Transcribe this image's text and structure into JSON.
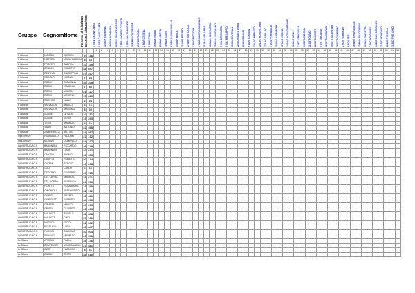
{
  "headers": {
    "group": "Gruppo",
    "surname": "Cognome",
    "name": "Nome"
  },
  "rotated_headers": {
    "presenze": "Presenze al 31/12/2025",
    "points": "Km. totali al 31/12/2025"
  },
  "events": [
    "1 GEN GRAN FONDO",
    "6 GEN CASSE CAFFE",
    "12 GEN RAVENNA",
    "19 GEN ROMAGNA",
    "26 GEN MONTEVECCHIO",
    "2 FEB SOCIETA' CICLISTA",
    "9 FEB SAN CLEMENTE",
    "16 FEB MONTEFIORE",
    "23 FEB FAENZA",
    "2 MAR CESENA",
    "9 MAR FORLI",
    "16 MAR RIMINI",
    "23 MAR CERVIA",
    "30 MAR LUGO",
    "6 APR BAGNACAVALLO",
    "13 APR IMOLA",
    "21 APR PESARO",
    "27 APR CATTOLICA",
    "1 MAG RICCIONE",
    "4 MAG SANTARCANGELO",
    "11 MAG BELLARIA",
    "18 MAG CESENATICO",
    "25 MAG SAVIGNANO",
    "1 GIU BERTINORO",
    "8 GIU PREDAPPIO",
    "15 GIU CIVITELLA",
    "22 GIU SANTA SOFIA",
    "29 GIU BAGNO",
    "6 LUG SARSINA",
    "13 LUG MERCATO",
    "20 LUG NOVAFELTRIA",
    "27 LUG SAN LEO",
    "3 AGO PENNABILLI",
    "10 AGO CARPEGNA",
    "17 AGO URBINO",
    "24 AGO FOSSOMBRONE",
    "31 AGO FANO",
    "7 SET SENIGALLIA",
    "14 SET ANCONA",
    "21 SET OSIMO",
    "28 SET LORETO",
    "5 OTT RECANATI",
    "12 OTT MACERATA",
    "19 OTT TOLENTINO",
    "26 OTT CAMERINO",
    "2 NOV FABRIANO",
    "9 NOV JESI",
    "16 NOV CHIARAVALLE",
    "23 NOV FALCONARA",
    "30 NOV MAROTTA",
    "7 DIC MONDOLFO",
    "14 DIC SAN COSTANZO",
    "21 DIC MONDAVIO",
    "28 DIC PERGOLA",
    "31 DIC FINE ANNO"
  ],
  "col_numbers": [
    "1",
    "2",
    "3",
    "4",
    "5",
    "6",
    "7",
    "8",
    "9",
    "10",
    "11",
    "12",
    "13",
    "14",
    "15",
    "16",
    "17",
    "18",
    "19",
    "20",
    "21",
    "22",
    "23",
    "24",
    "25",
    "26",
    "27",
    "28",
    "29",
    "30",
    "31",
    "32",
    "33",
    "34",
    "35",
    "36",
    "37",
    "38",
    "39",
    "40",
    "41",
    "42",
    "43",
    "44",
    "45",
    "46",
    "47",
    "48",
    "49",
    "50",
    "51",
    "52",
    "53",
    "54",
    "55"
  ],
  "rows": [
    [
      "8 Gitasole",
      "NICCOLI",
      "ALESSIO",
      "9",
      "146"
    ],
    [
      "8 Gitasole",
      "NOCERA",
      "MARIA SABRINA",
      "8",
      "68"
    ],
    [
      "8 Gitasole",
      "PROFETI",
      "ANDREA",
      "10",
      "149"
    ],
    [
      "8 Gitasole",
      "BENDINI",
      "ROBERTO",
      "48",
      "657"
    ],
    [
      "8 Gitasole",
      "RESTIVO",
      "GIUSEPPINA",
      "27",
      "297"
    ],
    [
      "8 Gitasole",
      "RODOLFI",
      "NICOLA",
      "7",
      "28"
    ],
    [
      "8 Gitasole",
      "ROSSI",
      "GIOVANNA",
      "35",
      "209"
    ],
    [
      "8 Gitasole",
      "ROSSI",
      "ISABELLA",
      "7",
      "85"
    ],
    [
      "8 Gitasole",
      "ROSSI",
      "MAURA",
      "21",
      "127"
    ],
    [
      "8 Gitasole",
      "ROSSI",
      "MORENO",
      "13",
      "221"
    ],
    [
      "8 Gitasole",
      "ROSTICCI",
      "NADIA",
      "2",
      "28"
    ],
    [
      "8 Gitasole",
      "SALVADORI",
      "MARCO",
      "8",
      "68"
    ],
    [
      "8 Gitasole",
      "SALVADORI",
      "MASSIMO",
      "8",
      "65"
    ],
    [
      "8 Gitasole",
      "SUSINI",
      "LETIZIA",
      "10",
      "151"
    ],
    [
      "8 Gitasole",
      "SUSINI",
      "SILVIA",
      "19",
      "293"
    ],
    [
      "8 Gitasole",
      "TESTI",
      "MAURIZIO",
      "4",
      "62"
    ],
    [
      "8 Gitasole",
      "VANNI",
      "ANTONIO",
      "42",
      "468"
    ],
    [
      "8 Gitasole",
      "ZAMPERELLA",
      "MATTEO",
      "34",
      "587"
    ],
    [
      "Inps Firenze",
      "FANFARILLO",
      "PAOLINO",
      "37",
      "132"
    ],
    [
      "Inps Firenze",
      "MORANTI",
      "DOMENICO",
      "34",
      "137"
    ],
    [
      "LA VERRUCA G.P.",
      "BARONTINI",
      "RICCARDO",
      "46",
      "749"
    ],
    [
      "LA VERRUCA G.P.",
      "BARONTINI",
      "LUCA",
      "40",
      "693"
    ],
    [
      "LA VERRUCA G.P.",
      "CANTINI",
      "BRUNO",
      "46",
      "306"
    ],
    [
      "LA VERRUCA G.P.",
      "CAMPTA",
      "ROBERTO",
      "30",
      "144"
    ],
    [
      "LA VERRUCA G.P.",
      "CATENI",
      "SERGIO",
      "46",
      "268"
    ],
    [
      "LA VERRUCA G.P.",
      "COLI",
      "CARLO",
      "4",
      "33"
    ],
    [
      "LA VERRUCA G.P.",
      "DEGIORGI",
      "GIUSEPPE",
      "49",
      "725"
    ],
    [
      "LA VERRUCA G.P.",
      "DEL CARRA",
      "MAURIZIO",
      "38",
      "671"
    ],
    [
      "LA VERRUCA G.P.",
      "DEL DOPPO",
      "FEDERICO",
      "23",
      "576"
    ],
    [
      "LA VERRUCA G.P.",
      "FIORITTI",
      "ROSA MARIA",
      "19",
      "239"
    ],
    [
      "LA VERRUCA G.P.",
      "GINGHIOLA",
      "FERDINANDO",
      "32",
      "172"
    ],
    [
      "LA VERRUCA G.P.",
      "GIORGI",
      "PIETRO",
      "43",
      "480"
    ],
    [
      "LA VERRUCA G.P.",
      "GIORGETTI",
      "FABRIZIO",
      "44",
      "670"
    ],
    [
      "LA VERRUCA G.P.",
      "GIRARDI",
      "MARCO",
      "49",
      "693"
    ],
    [
      "LA VERRUCA G.P.",
      "GRISSY",
      "OLIVIERO",
      "49",
      "663"
    ],
    [
      "LA VERRUCA G.P.",
      "MALFATTI",
      "ANGELO",
      "42",
      "388"
    ],
    [
      "LA VERRUCA G.P.",
      "MALFATTI",
      "DINO",
      "37",
      "161"
    ],
    [
      "LA VERRUCA G.P.",
      "MATTIOLI",
      "ENZO",
      "31",
      "362"
    ],
    [
      "LA VERRUCA G.P.",
      "PETRUCCI",
      "LUCA",
      "46",
      "347"
    ],
    [
      "LA VERRUCA G.P.",
      "PUCCINI",
      "GIACOMO",
      "40",
      "504"
    ],
    [
      "LA VERRUCA G.P.",
      "SBRANTI",
      "MAURIZIO",
      "40",
      "591"
    ],
    [
      "Le Sbarre",
      "ARRIGHI",
      "PAOLA",
      "35",
      "136"
    ],
    [
      "Le Sbarre",
      "BONVENUTI",
      "MASSIMILIANO",
      "37",
      "581"
    ],
    [
      "Le Sbarre",
      "CIARI",
      "NATASCIA",
      "5",
      "31"
    ],
    [
      "Le Sbarre",
      "ZARDIN",
      "TESTA",
      "38",
      "610"
    ]
  ]
}
